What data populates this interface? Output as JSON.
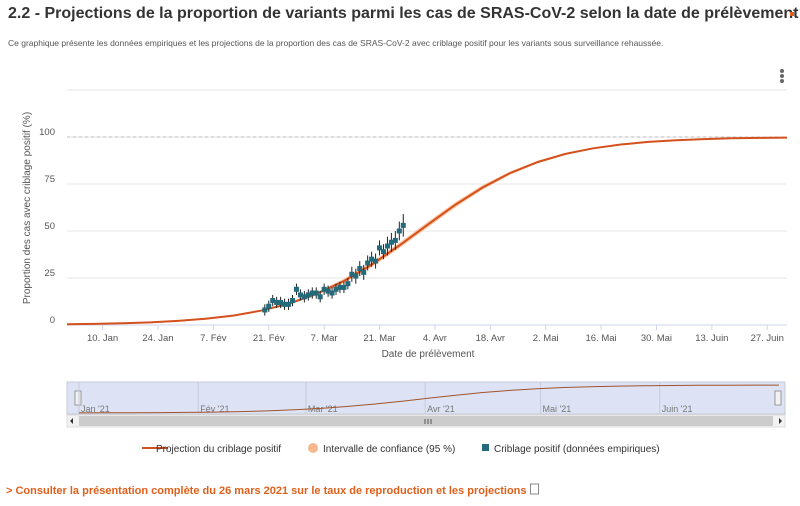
{
  "chart_data": {
    "type": "line",
    "title": "2.2 - Projections de la proportion de variants parmi les cas de SRAS-CoV-2 selon la date de prélèvement",
    "subtitle": "Ce graphique présente les données empiriques et les projections de la proportion des cas de SRAS-CoV-2 avec criblage positif pour les variants sous surveillance rehaussée.",
    "y_label": "Proportion des cas avec criblage positif (%)",
    "x_label": "Date de prélèvement",
    "xlim": [
      1,
      183
    ],
    "xticks": [
      {
        "value": 10,
        "label": "10. Jan"
      },
      {
        "value": 24,
        "label": "24. Jan"
      },
      {
        "value": 38,
        "label": "7. Fév"
      },
      {
        "value": 52,
        "label": "21. Fév"
      },
      {
        "value": 66,
        "label": "7. Mar"
      },
      {
        "value": 80,
        "label": "21. Mar"
      },
      {
        "value": 94,
        "label": "4. Avr"
      },
      {
        "value": 108,
        "label": "18. Avr"
      },
      {
        "value": 122,
        "label": "2. Mai"
      },
      {
        "value": 136,
        "label": "16. Mai"
      },
      {
        "value": 150,
        "label": "30. Mai"
      },
      {
        "value": 164,
        "label": "13. Juin"
      },
      {
        "value": 178,
        "label": "27. Juin"
      }
    ],
    "ylim": [
      0,
      125
    ],
    "yticks": [
      0,
      25,
      50,
      75,
      100
    ],
    "grid": true,
    "reference_line": 100,
    "series": [
      {
        "name": "Projection du criblage positif",
        "kind": "line",
        "color": "#d4501c",
        "x": [
          1,
          8,
          15,
          22,
          29,
          36,
          43,
          50,
          57,
          64,
          71,
          78,
          85,
          92,
          99,
          106,
          113,
          120,
          127,
          134,
          141,
          148,
          155,
          162,
          169,
          176,
          183
        ],
        "values": [
          0.4,
          0.6,
          0.9,
          1.4,
          2.2,
          3.3,
          5.0,
          7.6,
          11.3,
          16.5,
          23.4,
          32.1,
          42.3,
          53.1,
          63.7,
          73.1,
          80.8,
          86.7,
          91.0,
          94.0,
          96.0,
          97.4,
          98.3,
          98.9,
          99.3,
          99.5,
          99.7
        ]
      },
      {
        "name": "Intervalle de confiance (95 %)",
        "kind": "range",
        "color": "#f7b98c",
        "x": [
          1,
          8,
          15,
          22,
          29,
          36,
          43,
          50,
          57,
          64,
          71,
          78,
          85,
          92,
          99,
          106,
          113,
          120,
          127,
          134,
          141,
          148,
          155,
          162,
          169,
          176,
          183
        ],
        "low": [
          0.4,
          0.6,
          0.9,
          1.3,
          2.1,
          3.1,
          4.7,
          7.2,
          10.7,
          15.7,
          22.3,
          30.8,
          40.8,
          51.6,
          62.3,
          71.9,
          79.9,
          86.0,
          90.5,
          93.7,
          95.8,
          97.2,
          98.2,
          98.8,
          99.2,
          99.4,
          99.6
        ],
        "high": [
          0.4,
          0.6,
          0.9,
          1.5,
          2.3,
          3.5,
          5.3,
          8.0,
          11.9,
          17.3,
          24.5,
          33.4,
          43.8,
          54.6,
          65.1,
          74.3,
          81.7,
          87.4,
          91.5,
          94.3,
          96.2,
          97.6,
          98.4,
          99.0,
          99.4,
          99.6,
          99.8
        ]
      },
      {
        "name": "Criblage positif (données empiriques)",
        "kind": "points",
        "color": "#236a7a",
        "x": [
          51,
          52,
          53,
          54,
          55,
          56,
          57,
          58,
          59,
          60,
          61,
          62,
          63,
          64,
          65,
          66,
          67,
          68,
          69,
          70,
          71,
          72,
          73,
          74,
          75,
          76,
          77,
          78,
          79,
          80,
          81,
          82,
          83,
          84,
          85,
          86
        ],
        "values": [
          8,
          10,
          13,
          12,
          12,
          11,
          11,
          13,
          19,
          16,
          15,
          16,
          17,
          17,
          15,
          19,
          18,
          17,
          19,
          20,
          20,
          22,
          27,
          26,
          30,
          28,
          33,
          35,
          34,
          41,
          39,
          42,
          44,
          45,
          50,
          53
        ],
        "errors": [
          3,
          3,
          3,
          3,
          3,
          3,
          3,
          3,
          3,
          3,
          3,
          3,
          3,
          3,
          3,
          3,
          3,
          3,
          3,
          3,
          3,
          3,
          4,
          4,
          4,
          4,
          4,
          4,
          4,
          4,
          4,
          5,
          5,
          5,
          5,
          6
        ]
      }
    ],
    "navigator": {
      "labels": [
        {
          "value": 1,
          "label": "Jan '21"
        },
        {
          "value": 32,
          "label": "Fév '21"
        },
        {
          "value": 60,
          "label": "Mar '21"
        },
        {
          "value": 91,
          "label": "Avr '21"
        },
        {
          "value": 121,
          "label": "Mai '21"
        },
        {
          "value": 152,
          "label": "Juin '21"
        }
      ]
    },
    "footer_link": "> Consulter la présentation complète du 26 mars 2021 sur le taux de reproduction et les projections"
  }
}
